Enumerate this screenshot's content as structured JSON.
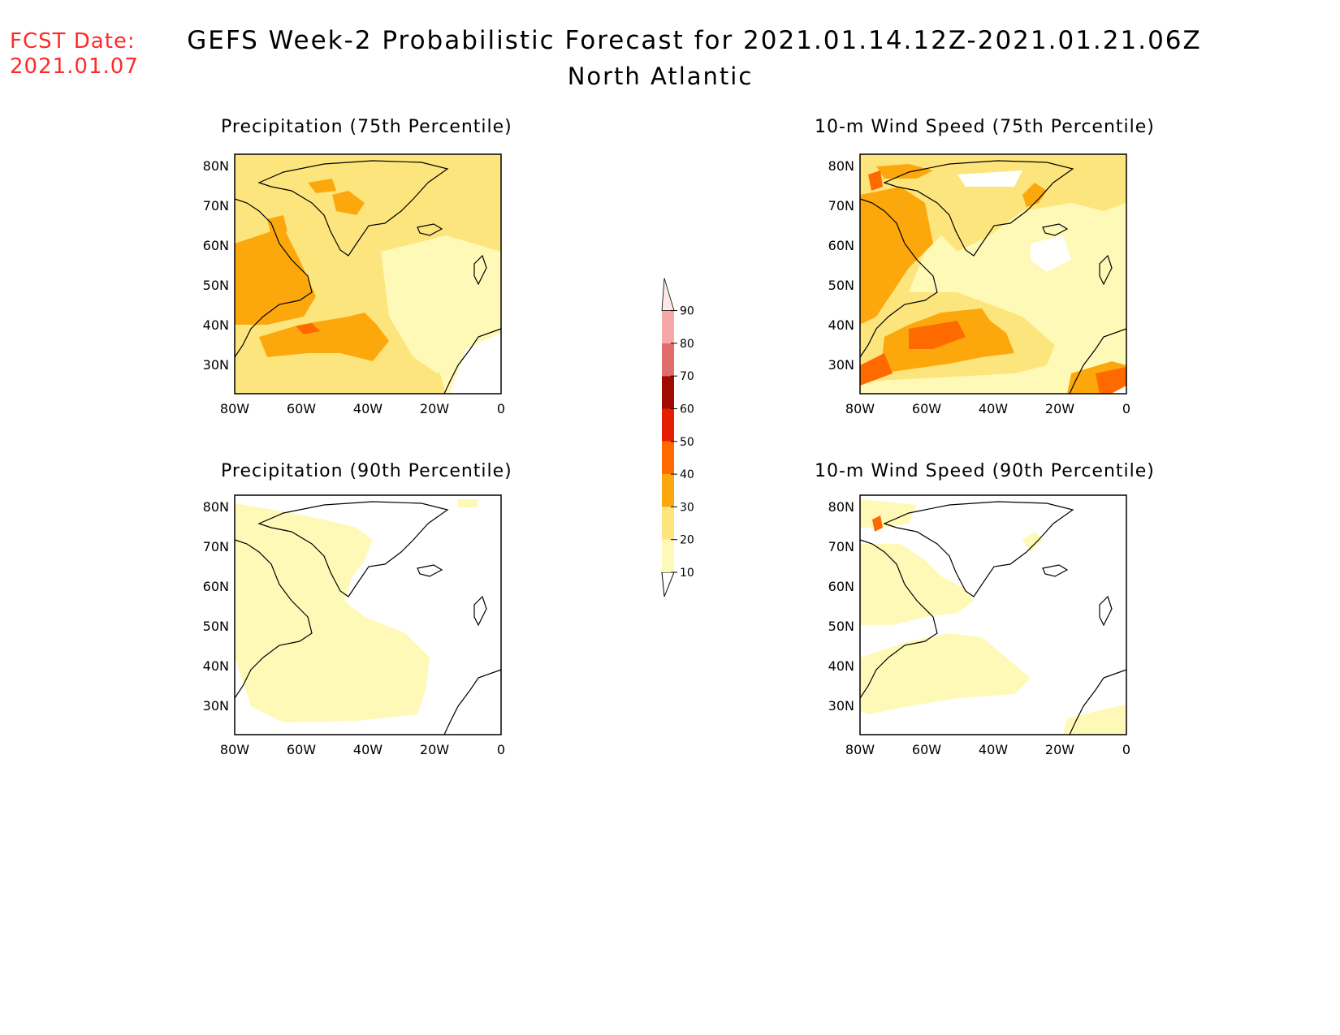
{
  "header": {
    "fcst_label": "FCST Date:",
    "fcst_date": "2021.01.07",
    "title": "GEFS Week-2 Probabilistic Forecast for 2021.01.14.12Z-2021.01.21.06Z",
    "subtitle": "North Atlantic"
  },
  "panels": [
    {
      "id": "precip75",
      "title": "Precipitation (75th Percentile)"
    },
    {
      "id": "wind75",
      "title": "10-m Wind Speed (75th Percentile)"
    },
    {
      "id": "precip90",
      "title": "Precipitation (90th Percentile)"
    },
    {
      "id": "wind90",
      "title": "10-m Wind Speed (90th Percentile)"
    }
  ],
  "axes": {
    "lat_labels": [
      "80N",
      "70N",
      "60N",
      "50N",
      "40N",
      "30N"
    ],
    "lon_labels": [
      "80W",
      "60W",
      "40W",
      "20W",
      "0"
    ]
  },
  "colorbar": {
    "levels": [
      "10",
      "20",
      "30",
      "40",
      "50",
      "60",
      "70",
      "80",
      "90"
    ],
    "colors": [
      "#fff9b8",
      "#fde57e",
      "#fca80c",
      "#ff6a00",
      "#e51e00",
      "#a00a00",
      "#e06c6c",
      "#f6a8a8",
      "#fde8e8"
    ]
  }
}
